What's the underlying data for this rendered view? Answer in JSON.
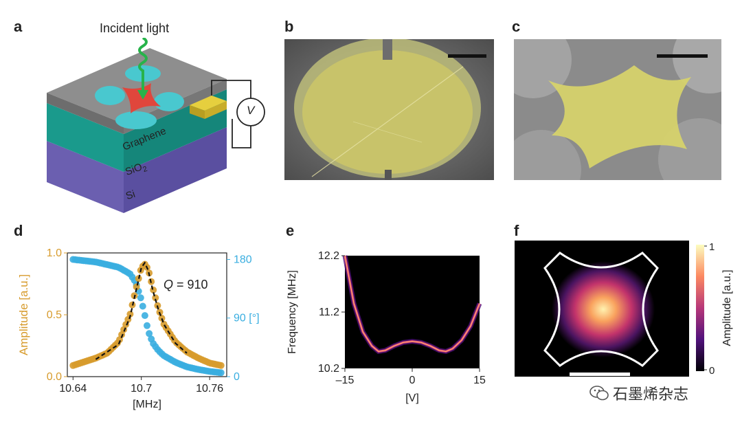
{
  "figure": {
    "panels": {
      "a": {
        "letter": "a",
        "incident_label": "Incident light",
        "layer_labels": [
          "Graphene",
          "SiO",
          "Si"
        ],
        "sio2_subscript": "2",
        "voltmeter_label": "V"
      },
      "b": {
        "letter": "b"
      },
      "c": {
        "letter": "c"
      },
      "d": {
        "letter": "d"
      },
      "e": {
        "letter": "e"
      },
      "f": {
        "letter": "f",
        "colorbar_ticks": [
          "1",
          "0"
        ],
        "colorbar_label": "Amplitude [a.u.]"
      }
    },
    "watermark": "石墨烯杂志"
  },
  "colors": {
    "gold": "#d79b2c",
    "cyan": "#3aaee0",
    "teal": "#1a9a8c",
    "purple": "#6b5fb0",
    "graphene_gray": "#8e8e8e",
    "red_membrane": "#e0463c",
    "sem_yellow": "#d8d46a"
  },
  "chart_data": [
    {
      "type": "scatter",
      "panel": "d",
      "xlabel": "[MHz]",
      "ylabel_left": "Amplitude [a.u.]",
      "ylabel_right": "90 [°]",
      "annotation": "Q = 910",
      "annotation_italic": "Q",
      "annotation_rest": " = 910",
      "xlim": [
        10.635,
        10.775
      ],
      "ylim_left": [
        0,
        1.0
      ],
      "ylim_right": [
        0,
        190
      ],
      "xticks": [
        10.64,
        10.7,
        10.76
      ],
      "xtick_labels": [
        "10.64",
        "10.7",
        "10.76"
      ],
      "yticks_left": [
        0.0,
        0.5,
        1.0
      ],
      "ytick_labels_left": [
        "0.0",
        "0.5",
        "1.0"
      ],
      "yticks_right": [
        0,
        90,
        180
      ],
      "ytick_labels_right": [
        "0",
        "90 [°]",
        "180"
      ],
      "right_axis_label_position": "mid",
      "series": [
        {
          "axis": "left",
          "color": "#d79b2c",
          "x": [
            10.64,
            10.65,
            10.66,
            10.67,
            10.68,
            10.69,
            10.695,
            10.7,
            10.703,
            10.706,
            10.71,
            10.715,
            10.72,
            10.73,
            10.74,
            10.75,
            10.76,
            10.77
          ],
          "y": [
            0.09,
            0.12,
            0.15,
            0.19,
            0.28,
            0.5,
            0.7,
            0.88,
            0.91,
            0.87,
            0.72,
            0.55,
            0.42,
            0.28,
            0.2,
            0.15,
            0.11,
            0.09
          ]
        },
        {
          "axis": "right",
          "color": "#3aaee0",
          "x": [
            10.64,
            10.65,
            10.66,
            10.67,
            10.68,
            10.69,
            10.695,
            10.7,
            10.703,
            10.706,
            10.71,
            10.715,
            10.72,
            10.73,
            10.74,
            10.75,
            10.76,
            10.77
          ],
          "y": [
            180,
            178,
            176,
            172,
            168,
            158,
            145,
            118,
            95,
            70,
            52,
            40,
            32,
            22,
            15,
            11,
            8,
            6
          ]
        },
        {
          "axis": "left",
          "color": "#111111",
          "style": "dashed-fit",
          "x": [
            10.66,
            10.68,
            10.69,
            10.695,
            10.7,
            10.703,
            10.706,
            10.71,
            10.715,
            10.72,
            10.73,
            10.74
          ],
          "y": [
            0.14,
            0.26,
            0.48,
            0.68,
            0.88,
            0.92,
            0.86,
            0.7,
            0.54,
            0.42,
            0.27,
            0.19
          ]
        }
      ]
    },
    {
      "type": "heatmap",
      "panel": "e",
      "xlabel": "[V]",
      "ylabel": "Frequency [MHz]",
      "xlim": [
        -15,
        15
      ],
      "ylim": [
        10.2,
        12.2
      ],
      "xticks": [
        -15,
        0,
        15
      ],
      "xtick_labels": [
        "–15",
        "0",
        "15"
      ],
      "yticks": [
        10.2,
        11.2,
        12.2
      ],
      "ytick_labels": [
        "10.2",
        "11.2",
        "12.2"
      ],
      "ridge": {
        "x": [
          -15,
          -13,
          -11,
          -9,
          -7.5,
          -6,
          -4,
          -2,
          0,
          2,
          4,
          6,
          7.5,
          9,
          11,
          13,
          15
        ],
        "y": [
          12.2,
          11.35,
          10.85,
          10.6,
          10.5,
          10.52,
          10.6,
          10.66,
          10.68,
          10.66,
          10.6,
          10.52,
          10.5,
          10.55,
          10.7,
          10.95,
          11.35
        ]
      }
    }
  ]
}
